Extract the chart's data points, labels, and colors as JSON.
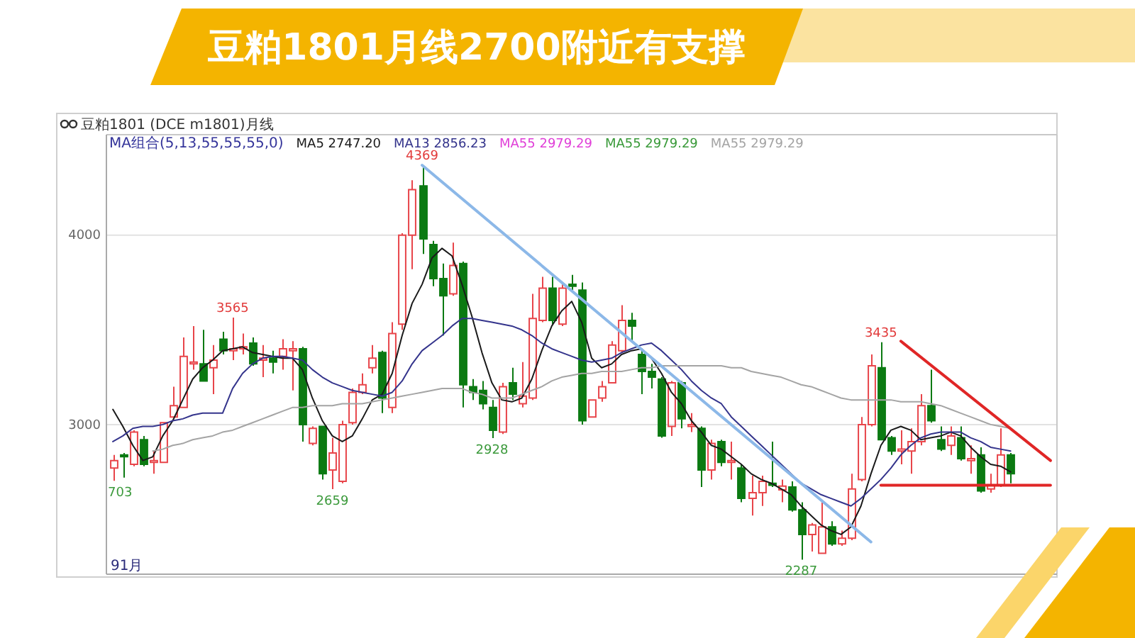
{
  "chart_data": {
    "type": "candlestick",
    "title": "豆粕1801月线2700附近有支撑",
    "subtitle": "豆粕1801 (DCE m1801)月线",
    "legend_title": "MA组合(5,13,55,55,55,0)",
    "categories": [
      null,
      null,
      null,
      null,
      null,
      null,
      null,
      null,
      null,
      null,
      null,
      null,
      null,
      null,
      null,
      null,
      null,
      null,
      null,
      null,
      null,
      null,
      null,
      null,
      null,
      null,
      null,
      null,
      null,
      null,
      null,
      null,
      null,
      null,
      null,
      null,
      null,
      null,
      null,
      null,
      null,
      null,
      null,
      null,
      null,
      null,
      null,
      null,
      null,
      null,
      null,
      null,
      null,
      null,
      null,
      null,
      null,
      null,
      null,
      null,
      null,
      null,
      null,
      null,
      null,
      null,
      null,
      null,
      null,
      null,
      null,
      null,
      null,
      null,
      null,
      null,
      null,
      null,
      null,
      null,
      null,
      null,
      null,
      null,
      null,
      null,
      null,
      null,
      null,
      null,
      null,
      null,
      null,
      null,
      null
    ],
    "ohlc": [
      [
        2770,
        2840,
        2703,
        2810
      ],
      [
        2840,
        2850,
        2720,
        2830
      ],
      [
        2790,
        2970,
        2780,
        2960
      ],
      [
        2920,
        2940,
        2780,
        2790
      ],
      [
        2800,
        2860,
        2740,
        2810
      ],
      [
        2800,
        3010,
        2800,
        3010
      ],
      [
        3040,
        3200,
        3040,
        3100
      ],
      [
        3090,
        3460,
        3090,
        3360
      ],
      [
        3320,
        3520,
        3290,
        3330
      ],
      [
        3320,
        3500,
        3230,
        3230
      ],
      [
        3300,
        3420,
        3160,
        3340
      ],
      [
        3450,
        3490,
        3370,
        3390
      ],
      [
        3390,
        3565,
        3340,
        3400
      ],
      [
        3400,
        3480,
        3370,
        3410
      ],
      [
        3430,
        3460,
        3310,
        3320
      ],
      [
        3340,
        3420,
        3250,
        3350
      ],
      [
        3350,
        3390,
        3270,
        3330
      ],
      [
        3360,
        3450,
        3290,
        3400
      ],
      [
        3390,
        3440,
        3180,
        3400
      ],
      [
        3400,
        3410,
        2910,
        3000
      ],
      [
        2900,
        2990,
        2890,
        2980
      ],
      [
        2990,
        2990,
        2710,
        2740
      ],
      [
        2760,
        2930,
        2659,
        2850
      ],
      [
        2700,
        3020,
        2690,
        3000
      ],
      [
        3010,
        3190,
        3000,
        3170
      ],
      [
        3170,
        3270,
        3160,
        3210
      ],
      [
        3300,
        3420,
        3270,
        3350
      ],
      [
        3380,
        3390,
        3060,
        3140
      ],
      [
        3090,
        3540,
        3060,
        3480
      ],
      [
        3530,
        4010,
        3500,
        4000
      ],
      [
        4000,
        4290,
        3820,
        4240
      ],
      [
        4260,
        4369,
        3900,
        3980
      ],
      [
        3950,
        3970,
        3730,
        3770
      ],
      [
        3770,
        3850,
        3470,
        3680
      ],
      [
        3690,
        3960,
        3680,
        3840
      ],
      [
        3850,
        3860,
        3090,
        3210
      ],
      [
        3200,
        3240,
        3130,
        3170
      ],
      [
        3180,
        3230,
        3080,
        3110
      ],
      [
        3090,
        3130,
        2928,
        2970
      ],
      [
        2960,
        3220,
        2950,
        3200
      ],
      [
        3220,
        3300,
        3130,
        3160
      ],
      [
        3110,
        3330,
        3090,
        3150
      ],
      [
        3140,
        3690,
        3130,
        3560
      ],
      [
        3550,
        3780,
        3540,
        3720
      ],
      [
        3720,
        3780,
        3530,
        3550
      ],
      [
        3530,
        3740,
        3520,
        3720
      ],
      [
        3740,
        3790,
        3710,
        3730
      ],
      [
        3710,
        3750,
        3000,
        3020
      ],
      [
        3040,
        3130,
        3040,
        3130
      ],
      [
        3140,
        3230,
        3120,
        3200
      ],
      [
        3220,
        3440,
        3220,
        3420
      ],
      [
        3390,
        3630,
        3380,
        3550
      ],
      [
        3550,
        3590,
        3440,
        3520
      ],
      [
        3370,
        3390,
        3160,
        3280
      ],
      [
        3280,
        3320,
        3190,
        3250
      ],
      [
        3240,
        3250,
        2930,
        2940
      ],
      [
        2990,
        3230,
        2940,
        3220
      ],
      [
        3220,
        3230,
        2980,
        3030
      ],
      [
        2990,
        3060,
        2960,
        3000
      ],
      [
        2980,
        2990,
        2670,
        2760
      ],
      [
        2760,
        2920,
        2710,
        2900
      ],
      [
        2910,
        2920,
        2780,
        2800
      ],
      [
        2800,
        2910,
        2710,
        2810
      ],
      [
        2770,
        2790,
        2590,
        2610
      ],
      [
        2610,
        2730,
        2520,
        2640
      ],
      [
        2640,
        2730,
        2570,
        2700
      ],
      [
        2690,
        2910,
        2670,
        2680
      ],
      [
        2655,
        2710,
        2590,
        2675
      ],
      [
        2670,
        2700,
        2540,
        2550
      ],
      [
        2550,
        2590,
        2287,
        2420
      ],
      [
        2420,
        2480,
        2330,
        2470
      ],
      [
        2320,
        2590,
        2320,
        2460
      ],
      [
        2460,
        2490,
        2360,
        2370
      ],
      [
        2370,
        2440,
        2360,
        2400
      ],
      [
        2400,
        2740,
        2390,
        2660
      ],
      [
        2710,
        3040,
        2700,
        3000
      ],
      [
        3000,
        3370,
        2990,
        3310
      ],
      [
        3300,
        3435,
        2920,
        2920
      ],
      [
        2930,
        2940,
        2840,
        2860
      ],
      [
        2860,
        2970,
        2790,
        2870
      ],
      [
        2860,
        2980,
        2740,
        2910
      ],
      [
        2910,
        3160,
        2890,
        3100
      ],
      [
        3100,
        3290,
        3010,
        3020
      ],
      [
        2920,
        2990,
        2860,
        2870
      ],
      [
        2890,
        2990,
        2840,
        2940
      ],
      [
        2930,
        2990,
        2810,
        2820
      ],
      [
        2810,
        2890,
        2740,
        2820
      ],
      [
        2840,
        2880,
        2640,
        2650
      ],
      [
        2660,
        2740,
        2640,
        2680
      ],
      [
        2680,
        2980,
        2670,
        2840
      ],
      [
        2840,
        2850,
        2690,
        2740
      ],
      null,
      null,
      null,
      null
    ],
    "series": [
      {
        "name": "MA5 2747.20",
        "type": "line",
        "color": "#1a1a1a",
        "values": [
          3080,
          2990,
          2890,
          2810,
          2830,
          2940,
          3020,
          3130,
          3240,
          3300,
          3340,
          3390,
          3400,
          3410,
          3380,
          3370,
          3360,
          3350,
          3350,
          3290,
          3140,
          3020,
          2940,
          2910,
          2940,
          3030,
          3130,
          3160,
          3270,
          3470,
          3640,
          3740,
          3880,
          3930,
          3890,
          3740,
          3570,
          3380,
          3220,
          3130,
          3120,
          3140,
          3240,
          3390,
          3520,
          3600,
          3650,
          3540,
          3350,
          3300,
          3320,
          3370,
          3390,
          3400,
          3350,
          3270,
          3170,
          3110,
          3020,
          2960,
          2890,
          2870,
          2830,
          2790,
          2740,
          2710,
          2690,
          2660,
          2630,
          2570,
          2520,
          2470,
          2440,
          2420,
          2460,
          2570,
          2740,
          2890,
          2970,
          2990,
          2970,
          2920,
          2930,
          2940,
          2960,
          2940,
          2880,
          2830,
          2790,
          2780,
          2750,
          null,
          null,
          null,
          null
        ]
      },
      {
        "name": "MA13 2856.23",
        "type": "line",
        "color": "#34348c",
        "values": [
          2910,
          2940,
          2980,
          2990,
          2990,
          3000,
          3020,
          3030,
          3050,
          3060,
          3060,
          3060,
          3190,
          3270,
          3320,
          3350,
          3360,
          3360,
          3350,
          3340,
          3290,
          3250,
          3220,
          3200,
          3180,
          3170,
          3160,
          3150,
          3170,
          3230,
          3320,
          3390,
          3430,
          3470,
          3520,
          3560,
          3560,
          3550,
          3540,
          3530,
          3520,
          3500,
          3470,
          3430,
          3400,
          3380,
          3360,
          3340,
          3330,
          3340,
          3350,
          3380,
          3400,
          3420,
          3430,
          3390,
          3340,
          3290,
          3230,
          3180,
          3140,
          3110,
          3040,
          2990,
          2940,
          2890,
          2840,
          2790,
          2740,
          2690,
          2660,
          2630,
          2610,
          2590,
          2570,
          2610,
          2660,
          2710,
          2770,
          2840,
          2890,
          2930,
          2950,
          2960,
          2960,
          2960,
          2930,
          2910,
          2880,
          2870,
          2860,
          null,
          null,
          null,
          null
        ]
      },
      {
        "name": "MA55 2979.29",
        "type": "line",
        "color": "#e040d8",
        "values": [
          null,
          null,
          null,
          null,
          null,
          null,
          null,
          null,
          null,
          null,
          null,
          null,
          null,
          null,
          null,
          null,
          null,
          null,
          null,
          null,
          null,
          null,
          null,
          null,
          null,
          null,
          null,
          null,
          null,
          null,
          null,
          null,
          null,
          null,
          null,
          null,
          null,
          null,
          null,
          null,
          null,
          null,
          null,
          null,
          null,
          null,
          null,
          null,
          null,
          null,
          null,
          null,
          null,
          null,
          null,
          null,
          null,
          null,
          null,
          null,
          null,
          null,
          null,
          null,
          null,
          null,
          null,
          null,
          null,
          null,
          null,
          null,
          null,
          null,
          null,
          null,
          null,
          null,
          null,
          null,
          null,
          null,
          null,
          null,
          null,
          null,
          null,
          null,
          null,
          null,
          null,
          null,
          null,
          null,
          null
        ]
      },
      {
        "name": "MA55 2979.29",
        "type": "line",
        "color": "#3a9a3a",
        "values": [
          null,
          null,
          null,
          null,
          null,
          null,
          null,
          null,
          null,
          null,
          null,
          null,
          null,
          null,
          null,
          null,
          null,
          null,
          null,
          null,
          null,
          null,
          null,
          null,
          null,
          null,
          null,
          null,
          null,
          null,
          null,
          null,
          null,
          null,
          null,
          null,
          null,
          null,
          null,
          null,
          null,
          null,
          null,
          null,
          null,
          null,
          null,
          null,
          null,
          null,
          null,
          null,
          null,
          null,
          null,
          null,
          null,
          null,
          null,
          null,
          null,
          null,
          null,
          null,
          null,
          null,
          null,
          null,
          null,
          null,
          null,
          null,
          null,
          null,
          null,
          null,
          null,
          null,
          null,
          null,
          null,
          null,
          null,
          null,
          null,
          null,
          null,
          null,
          null,
          null,
          null,
          null,
          null,
          null,
          null
        ]
      },
      {
        "name": "MA55 2979.29",
        "type": "line",
        "color": "#a4a4a4",
        "values": [
          null,
          null,
          null,
          null,
          2860,
          2870,
          2890,
          2900,
          2920,
          2930,
          2940,
          2960,
          2970,
          2990,
          3010,
          3030,
          3050,
          3070,
          3090,
          3090,
          3100,
          3100,
          3100,
          3110,
          3110,
          3110,
          3120,
          3130,
          3140,
          3150,
          3160,
          3170,
          3180,
          3190,
          3190,
          3190,
          3170,
          3160,
          3140,
          3140,
          3140,
          3160,
          3180,
          3200,
          3230,
          3250,
          3260,
          3270,
          3270,
          3280,
          3280,
          3280,
          3290,
          3300,
          3300,
          3310,
          3310,
          3310,
          3310,
          3310,
          3310,
          3310,
          3300,
          3300,
          3280,
          3270,
          3260,
          3250,
          3230,
          3210,
          3200,
          3180,
          3160,
          3140,
          3130,
          3130,
          3130,
          3130,
          3130,
          3120,
          3120,
          3120,
          3110,
          3100,
          3080,
          3060,
          3040,
          3020,
          3000,
          2990,
          2980,
          null,
          null,
          null,
          null
        ]
      },
      {
        "type": "line",
        "color": "#8cb8e8",
        "values": [
          null,
          null,
          null,
          null,
          null,
          null,
          null,
          null,
          null,
          null,
          null,
          null,
          null,
          null,
          null,
          null,
          null,
          null,
          null,
          null,
          null,
          null,
          null,
          null,
          null,
          null,
          null,
          null,
          null,
          null,
          null,
          4369,
          null,
          null,
          null,
          null,
          null,
          null,
          null,
          null,
          null,
          null,
          null,
          null,
          null,
          null,
          null,
          null,
          null,
          null,
          null,
          null,
          null,
          null,
          null,
          null,
          null,
          null,
          null,
          null,
          null,
          null,
          null,
          null,
          null,
          null,
          null,
          null,
          null,
          null,
          null,
          null,
          null,
          null,
          null,
          null,
          2380,
          null,
          null,
          null,
          null,
          null,
          null,
          null,
          null,
          null,
          null,
          null,
          null,
          null,
          null,
          null,
          null,
          null,
          null
        ]
      },
      {
        "type": "line",
        "color": "#e02626",
        "values": [
          null,
          null,
          null,
          null,
          null,
          null,
          null,
          null,
          null,
          null,
          null,
          null,
          null,
          null,
          null,
          null,
          null,
          null,
          null,
          null,
          null,
          null,
          null,
          null,
          null,
          null,
          null,
          null,
          null,
          null,
          null,
          null,
          null,
          null,
          null,
          null,
          null,
          null,
          null,
          null,
          null,
          null,
          null,
          null,
          null,
          null,
          null,
          null,
          null,
          null,
          null,
          null,
          null,
          null,
          null,
          null,
          null,
          null,
          null,
          null,
          null,
          null,
          null,
          null,
          null,
          null,
          null,
          null,
          null,
          null,
          null,
          null,
          null,
          null,
          null,
          null,
          null,
          null,
          null,
          3440,
          null,
          null,
          null,
          null,
          null,
          null,
          null,
          null,
          null,
          null,
          null,
          null,
          null,
          null,
          2810
        ]
      },
      {
        "type": "line",
        "color": "#e02626",
        "values": [
          null,
          null,
          null,
          null,
          null,
          null,
          null,
          null,
          null,
          null,
          null,
          null,
          null,
          null,
          null,
          null,
          null,
          null,
          null,
          null,
          null,
          null,
          null,
          null,
          null,
          null,
          null,
          null,
          null,
          null,
          null,
          null,
          null,
          null,
          null,
          null,
          null,
          null,
          null,
          null,
          null,
          null,
          null,
          null,
          null,
          null,
          null,
          null,
          null,
          null,
          null,
          null,
          null,
          null,
          null,
          null,
          null,
          null,
          null,
          null,
          null,
          null,
          null,
          null,
          null,
          null,
          null,
          null,
          null,
          null,
          null,
          null,
          null,
          null,
          null,
          null,
          null,
          2680,
          null,
          null,
          null,
          null,
          null,
          null,
          null,
          null,
          null,
          null,
          null,
          null,
          null,
          null,
          null,
          null,
          2680
        ]
      }
    ],
    "ylim": [
      2210,
      4530
    ],
    "yticks": [
      3000,
      4000
    ],
    "grid": "y",
    "legend": "top left",
    "annotations": [
      {
        "text": "4369",
        "y": 4369
      },
      {
        "text": "3565",
        "y": 3565
      },
      {
        "text": "3435",
        "y": 3435
      },
      {
        "text": "2659",
        "y": 2659
      },
      {
        "text": "2928",
        "y": 2928
      },
      {
        "text": "2287",
        "y": 2287
      },
      {
        "text": "703",
        "y": 2703
      },
      "91月"
    ]
  }
}
